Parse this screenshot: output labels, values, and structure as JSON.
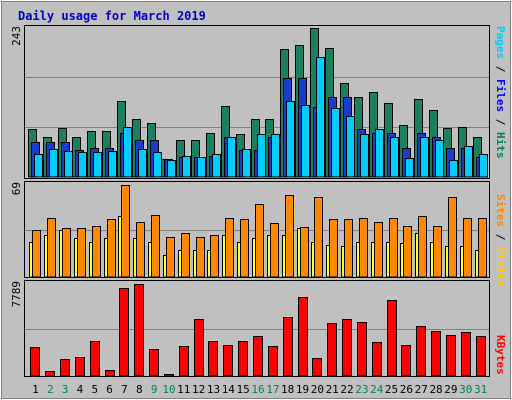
{
  "chart_data": {
    "type": "bar",
    "title": "Daily usage for March 2019",
    "categories": [
      "1",
      "2",
      "3",
      "4",
      "5",
      "6",
      "7",
      "8",
      "9",
      "10",
      "11",
      "12",
      "13",
      "14",
      "15",
      "16",
      "17",
      "18",
      "19",
      "20",
      "21",
      "22",
      "23",
      "24",
      "25",
      "26",
      "27",
      "28",
      "29",
      "30",
      "31"
    ],
    "weekend_days": [
      2,
      3,
      9,
      10,
      16,
      17,
      23,
      24,
      30,
      31
    ],
    "panels": [
      {
        "ymax_label": "243",
        "ymax": 243,
        "legend": [
          {
            "text": "Pages",
            "color": "#00ccff"
          },
          {
            "text": " / ",
            "color": "#000000"
          },
          {
            "text": "Files",
            "color": "#0000ff"
          },
          {
            "text": " / ",
            "color": "#000000"
          },
          {
            "text": "Hits",
            "color": "#00805f"
          }
        ],
        "series": [
          {
            "name": "Hits",
            "color": "#1a8060",
            "values": [
              78,
              65,
              80,
              65,
              75,
              75,
              124,
              95,
              88,
              30,
              61,
              60,
              72,
              116,
              70,
              95,
              95,
              209,
              216,
              243,
              211,
              153,
              130,
              138,
              120,
              85,
              127,
              110,
              80,
              81,
              65
            ]
          },
          {
            "name": "Files",
            "color": "#1a3ccc",
            "values": [
              57,
              57,
              57,
              44,
              48,
              48,
              72,
              60,
              60,
              30,
              33,
              33,
              35,
              66,
              44,
              44,
              66,
              162,
              162,
              114,
              130,
              130,
              78,
              72,
              72,
              48,
              72,
              65,
              48,
              48,
              33
            ]
          },
          {
            "name": "Pages",
            "color": "#00ccff",
            "values": [
              38,
              45,
              42,
              40,
              40,
              42,
              82,
              45,
              40,
              28,
              35,
              33,
              38,
              66,
              45,
              70,
              70,
              124,
              118,
              196,
              112,
              100,
              70,
              78,
              66,
              31,
              66,
              60,
              28,
              50,
              38
            ]
          }
        ]
      },
      {
        "ymax_label": "69",
        "ymax": 69,
        "legend": [
          {
            "text": "Sites",
            "color": "#ff8800"
          },
          {
            "text": " / ",
            "color": "#000000"
          },
          {
            "text": "Visits",
            "color": "#ffcc00"
          }
        ],
        "series": [
          {
            "name": "Visits",
            "color": "#ffff33",
            "values": [
              26,
              31,
              35,
              29,
              26,
              29,
              45,
              29,
              26,
              16,
              20,
              20,
              20,
              31,
              26,
              29,
              31,
              31,
              36,
              26,
              24,
              23,
              26,
              26,
              26,
              25,
              33,
              26,
              23,
              23,
              20
            ]
          },
          {
            "name": "Sites",
            "color": "#ff8800",
            "values": [
              35,
              44,
              36,
              36,
              38,
              43,
              68,
              41,
              46,
              30,
              33,
              30,
              31,
              44,
              43,
              54,
              40,
              61,
              37,
              59,
              43,
              43,
              44,
              41,
              44,
              38,
              45,
              38,
              59,
              44,
              44
            ]
          }
        ]
      },
      {
        "ymax_label": "7789",
        "ymax": 7789,
        "legend": [
          {
            "text": "KBytes",
            "color": "#ff0000"
          }
        ],
        "series": [
          {
            "name": "KBytes",
            "color": "#ff0000",
            "values": [
              2450,
              400,
              1400,
              1600,
              2900,
              500,
              7400,
              7689,
              2300,
              200,
              2500,
              4800,
              2900,
              2600,
              2950,
              3350,
              2550,
              4950,
              6600,
              1500,
              4450,
              4750,
              4500,
              2850,
              6400,
              2600,
              4150,
              3800,
              3450,
              3650,
              3350
            ]
          }
        ]
      }
    ]
  }
}
